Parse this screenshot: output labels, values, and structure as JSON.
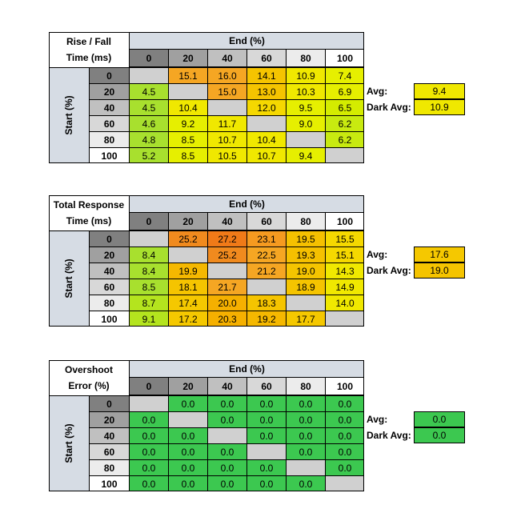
{
  "chart_data": [
    {
      "type": "table",
      "title_lines": [
        "Rise / Fall",
        "Time (ms)"
      ],
      "col_header": "End (%)",
      "row_header": "Start (%)",
      "columns": [
        "0",
        "20",
        "40",
        "60",
        "80",
        "100"
      ],
      "rows": [
        "0",
        "20",
        "40",
        "60",
        "80",
        "100"
      ],
      "values": [
        [
          null,
          15.1,
          16.0,
          14.1,
          10.9,
          7.4
        ],
        [
          4.5,
          null,
          15.0,
          13.0,
          10.3,
          6.9
        ],
        [
          4.5,
          10.4,
          null,
          12.0,
          9.5,
          6.5
        ],
        [
          4.6,
          9.2,
          11.7,
          null,
          9.0,
          6.2
        ],
        [
          4.8,
          8.5,
          10.7,
          10.4,
          null,
          6.2
        ],
        [
          5.2,
          8.5,
          10.5,
          10.7,
          9.4,
          null
        ]
      ],
      "display": [
        [
          "",
          "15.1",
          "16.0",
          "14.1",
          "10.9",
          "7.4"
        ],
        [
          "4.5",
          "",
          "15.0",
          "13.0",
          "10.3",
          "6.9"
        ],
        [
          "4.5",
          "10.4",
          "",
          "12.0",
          "9.5",
          "6.5"
        ],
        [
          "4.6",
          "9.2",
          "11.7",
          "",
          "9.0",
          "6.2"
        ],
        [
          "4.8",
          "8.5",
          "10.7",
          "10.4",
          "",
          "6.2"
        ],
        [
          "5.2",
          "8.5",
          "10.5",
          "10.7",
          "9.4",
          ""
        ]
      ],
      "colors": [
        [
          "#d0d0d0",
          "#f5a623",
          "#f5a623",
          "#f5c400",
          "#f0e800",
          "#e6ef00"
        ],
        [
          "#a8e02e",
          "#d0d0d0",
          "#f5a623",
          "#f5c400",
          "#f0e800",
          "#e6ef00"
        ],
        [
          "#a8e02e",
          "#f0e800",
          "#d0d0d0",
          "#f5d800",
          "#e6ef00",
          "#d4ec00"
        ],
        [
          "#a8e02e",
          "#e6ef00",
          "#f0e800",
          "#d0d0d0",
          "#e6ef00",
          "#c8ea10"
        ],
        [
          "#a8e02e",
          "#e6ef00",
          "#f0e800",
          "#f0e800",
          "#d0d0d0",
          "#c8ea10"
        ],
        [
          "#a8e02e",
          "#e6ef00",
          "#f0e800",
          "#f0e800",
          "#e6ef00",
          "#d0d0d0"
        ]
      ],
      "avg_label": "Avg:",
      "avg": "9.4",
      "avg_color": "#f0e800",
      "dark_avg_label": "Dark Avg:",
      "dark_avg": "10.9",
      "dark_avg_color": "#f0e800"
    },
    {
      "type": "table",
      "title_lines": [
        "Total Response",
        "Time (ms)"
      ],
      "col_header": "End (%)",
      "row_header": "Start (%)",
      "columns": [
        "0",
        "20",
        "40",
        "60",
        "80",
        "100"
      ],
      "rows": [
        "0",
        "20",
        "40",
        "60",
        "80",
        "100"
      ],
      "values": [
        [
          null,
          25.2,
          27.2,
          23.1,
          19.5,
          15.5
        ],
        [
          8.4,
          null,
          25.2,
          22.5,
          19.3,
          15.1
        ],
        [
          8.4,
          19.9,
          null,
          21.2,
          19.0,
          14.3
        ],
        [
          8.5,
          18.1,
          21.7,
          null,
          18.9,
          14.9
        ],
        [
          8.7,
          17.4,
          20.0,
          18.3,
          null,
          14.0
        ],
        [
          9.1,
          17.2,
          20.3,
          19.2,
          17.7,
          null
        ]
      ],
      "display": [
        [
          "",
          "25.2",
          "27.2",
          "23.1",
          "19.5",
          "15.5"
        ],
        [
          "8.4",
          "",
          "25.2",
          "22.5",
          "19.3",
          "15.1"
        ],
        [
          "8.4",
          "19.9",
          "",
          "21.2",
          "19.0",
          "14.3"
        ],
        [
          "8.5",
          "18.1",
          "21.7",
          "",
          "18.9",
          "14.9"
        ],
        [
          "8.7",
          "17.4",
          "20.0",
          "18.3",
          "",
          "14.0"
        ],
        [
          "9.1",
          "17.2",
          "20.3",
          "19.2",
          "17.7",
          ""
        ]
      ],
      "colors": [
        [
          "#d0d0d0",
          "#f08a1e",
          "#f07a18",
          "#f59a20",
          "#f5c000",
          "#f5d800"
        ],
        [
          "#a8e02e",
          "#d0d0d0",
          "#f08a1e",
          "#f5a623",
          "#f5c000",
          "#f5d800"
        ],
        [
          "#a8e02e",
          "#f5b800",
          "#d0d0d0",
          "#f5a623",
          "#f5c400",
          "#f0e800"
        ],
        [
          "#a8e02e",
          "#f5c400",
          "#f5a623",
          "#d0d0d0",
          "#f5c400",
          "#f0e800"
        ],
        [
          "#b4e41e",
          "#f5c800",
          "#f5b000",
          "#f5c400",
          "#d0d0d0",
          "#f0e800"
        ],
        [
          "#b4e41e",
          "#f5c800",
          "#f5b000",
          "#f5b800",
          "#f5c800",
          "#d0d0d0"
        ]
      ],
      "avg_label": "Avg:",
      "avg": "17.6",
      "avg_color": "#f5c800",
      "dark_avg_label": "Dark Avg:",
      "dark_avg": "19.0",
      "dark_avg_color": "#f5c400"
    },
    {
      "type": "table",
      "title_lines": [
        "Overshoot",
        "Error (%)"
      ],
      "col_header": "End (%)",
      "row_header": "Start (%)",
      "columns": [
        "0",
        "20",
        "40",
        "60",
        "80",
        "100"
      ],
      "rows": [
        "0",
        "20",
        "40",
        "60",
        "80",
        "100"
      ],
      "values": [
        [
          null,
          0.0,
          0.0,
          0.0,
          0.0,
          0.0
        ],
        [
          0.0,
          null,
          0.0,
          0.0,
          0.0,
          0.0
        ],
        [
          0.0,
          0.0,
          null,
          0.0,
          0.0,
          0.0
        ],
        [
          0.0,
          0.0,
          0.0,
          null,
          0.0,
          0.0
        ],
        [
          0.0,
          0.0,
          0.0,
          0.0,
          null,
          0.0
        ],
        [
          0.0,
          0.0,
          0.0,
          0.0,
          0.0,
          null
        ]
      ],
      "display": [
        [
          "",
          "0.0",
          "0.0",
          "0.0",
          "0.0",
          "0.0"
        ],
        [
          "0.0",
          "",
          "0.0",
          "0.0",
          "0.0",
          "0.0"
        ],
        [
          "0.0",
          "0.0",
          "",
          "0.0",
          "0.0",
          "0.0"
        ],
        [
          "0.0",
          "0.0",
          "0.0",
          "",
          "0.0",
          "0.0"
        ],
        [
          "0.0",
          "0.0",
          "0.0",
          "0.0",
          "",
          "0.0"
        ],
        [
          "0.0",
          "0.0",
          "0.0",
          "0.0",
          "0.0",
          ""
        ]
      ],
      "colors": [
        [
          "#d0d0d0",
          "#3cc850",
          "#3cc850",
          "#3cc850",
          "#3cc850",
          "#3cc850"
        ],
        [
          "#3cc850",
          "#d0d0d0",
          "#3cc850",
          "#3cc850",
          "#3cc850",
          "#3cc850"
        ],
        [
          "#3cc850",
          "#3cc850",
          "#d0d0d0",
          "#3cc850",
          "#3cc850",
          "#3cc850"
        ],
        [
          "#3cc850",
          "#3cc850",
          "#3cc850",
          "#d0d0d0",
          "#3cc850",
          "#3cc850"
        ],
        [
          "#3cc850",
          "#3cc850",
          "#3cc850",
          "#3cc850",
          "#d0d0d0",
          "#3cc850"
        ],
        [
          "#3cc850",
          "#3cc850",
          "#3cc850",
          "#3cc850",
          "#3cc850",
          "#d0d0d0"
        ]
      ],
      "avg_label": "Avg:",
      "avg": "0.0",
      "avg_color": "#3cc850",
      "dark_avg_label": "Dark Avg:",
      "dark_avg": "0.0",
      "dark_avg_color": "#3cc850"
    }
  ],
  "theme": {
    "header_bg": "#d6dce4",
    "col_header_shades": [
      "#808080",
      "#a0a0a0",
      "#c0c0c0",
      "#d8d8d8",
      "#ececec",
      "#ffffff"
    ],
    "border": "#000000"
  }
}
